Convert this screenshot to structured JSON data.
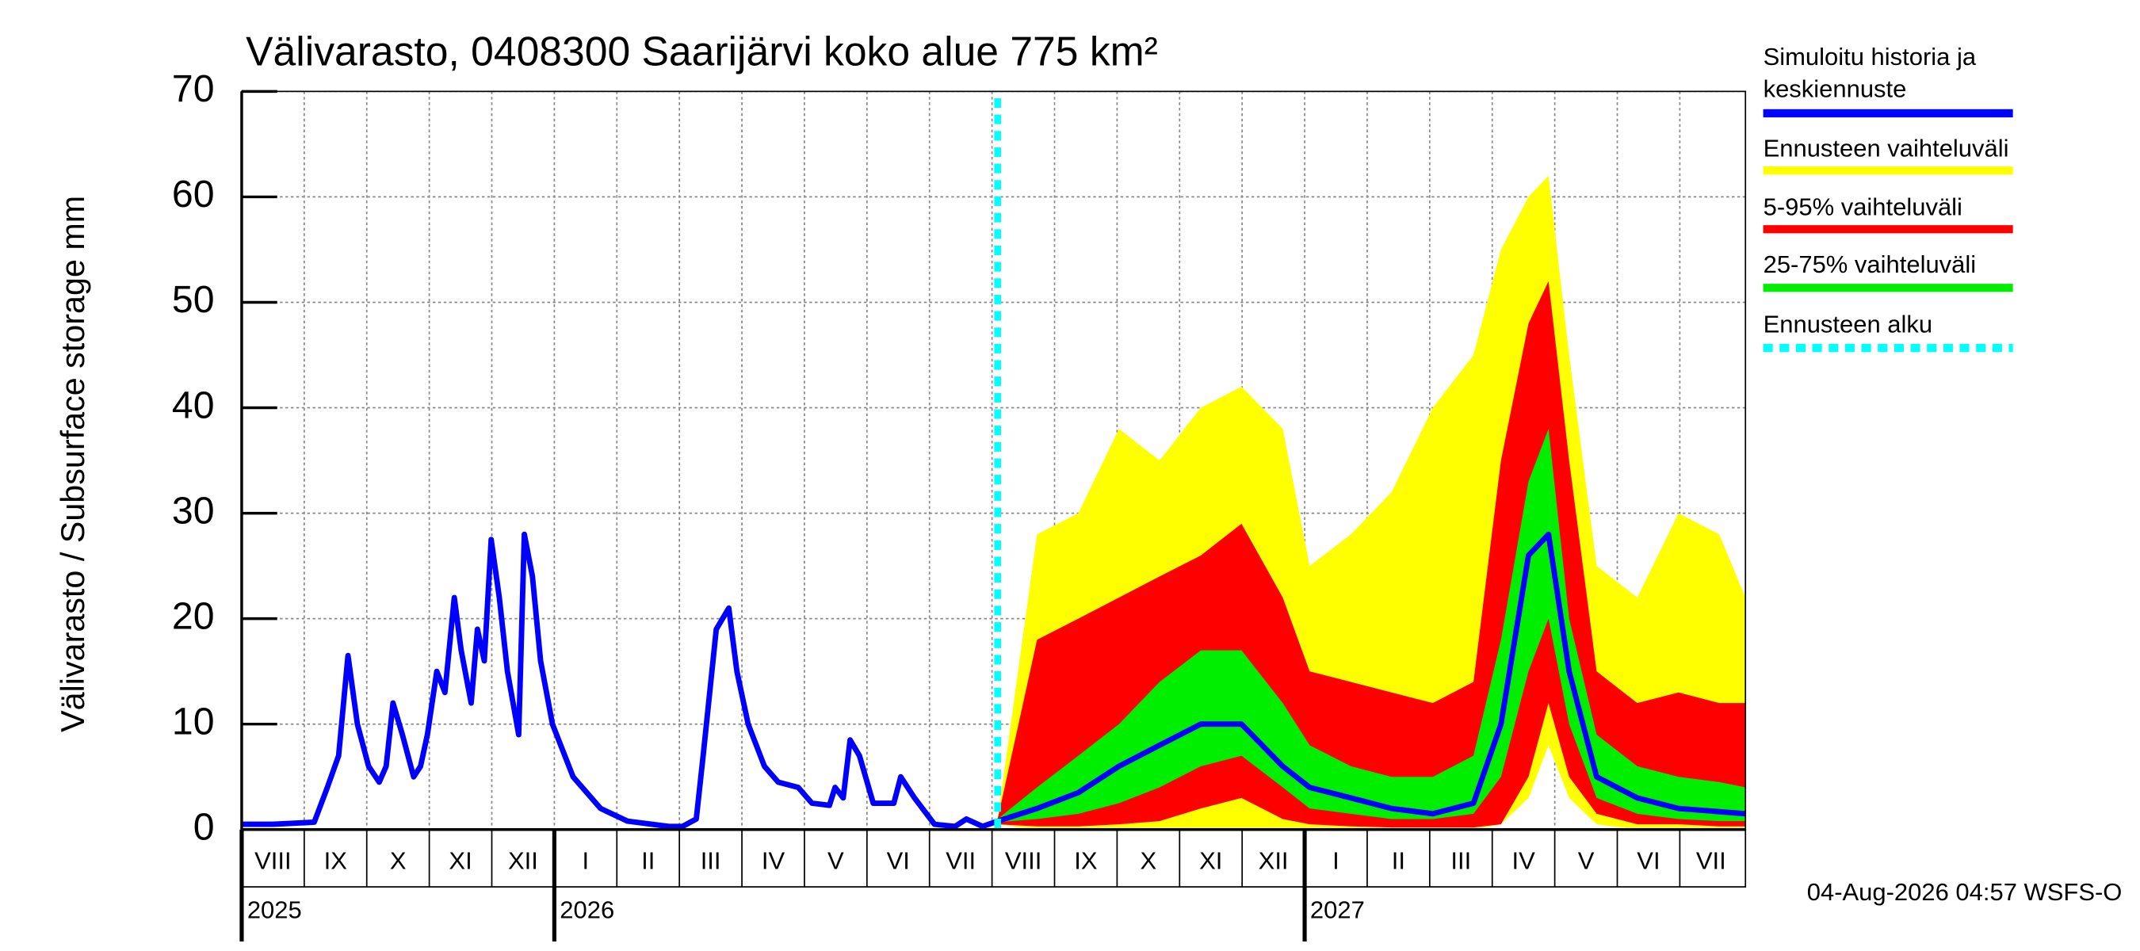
{
  "chart_data": {
    "type": "line",
    "title": "Välivarasto, 0408300 Saarijärvi koko alue 775 km²",
    "y_label": "Välivarasto / Subsurface storage  mm",
    "footer": "04-Aug-2026 04:57 WSFS-O",
    "ylim": [
      0,
      70
    ],
    "yticks": [
      0,
      10,
      20,
      30,
      40,
      50,
      60,
      70
    ],
    "grid": true,
    "xlim": [
      0,
      24.05
    ],
    "xgrid": [
      1,
      2,
      3,
      4,
      5,
      6,
      7,
      8,
      9,
      10,
      11,
      12,
      13,
      14,
      15,
      16,
      17,
      18,
      19,
      20,
      21,
      22,
      23
    ],
    "month_labels": [
      {
        "value": 0.5,
        "label": "VIII"
      },
      {
        "value": 1.5,
        "label": "IX"
      },
      {
        "value": 2.5,
        "label": "X"
      },
      {
        "value": 3.5,
        "label": "XI"
      },
      {
        "value": 4.5,
        "label": "XII"
      },
      {
        "value": 5.5,
        "label": "I"
      },
      {
        "value": 6.5,
        "label": "II"
      },
      {
        "value": 7.5,
        "label": "III"
      },
      {
        "value": 8.5,
        "label": "IV"
      },
      {
        "value": 9.5,
        "label": "V"
      },
      {
        "value": 10.5,
        "label": "VI"
      },
      {
        "value": 11.5,
        "label": "VII"
      },
      {
        "value": 12.5,
        "label": "VIII"
      },
      {
        "value": 13.5,
        "label": "IX"
      },
      {
        "value": 14.5,
        "label": "X"
      },
      {
        "value": 15.5,
        "label": "XI"
      },
      {
        "value": 16.5,
        "label": "XII"
      },
      {
        "value": 17.5,
        "label": "I"
      },
      {
        "value": 18.5,
        "label": "II"
      },
      {
        "value": 19.5,
        "label": "III"
      },
      {
        "value": 20.5,
        "label": "IV"
      },
      {
        "value": 21.5,
        "label": "V"
      },
      {
        "value": 22.5,
        "label": "VI"
      },
      {
        "value": 23.5,
        "label": "VII"
      }
    ],
    "year_labels": [
      {
        "value": 0,
        "label": "2025"
      },
      {
        "value": 5,
        "label": "2026"
      },
      {
        "value": 17,
        "label": "2027"
      }
    ],
    "forecast_x": [
      12.09,
      12.72,
      13.38,
      14.03,
      14.68,
      15.34,
      15.99,
      16.65,
      17.08,
      17.74,
      18.39,
      19.05,
      19.7,
      20.14,
      20.58,
      20.9,
      21.23,
      21.67,
      22.32,
      22.98,
      23.63,
      24.05
    ],
    "series": [
      {
        "name": "Simuloitu historia ja\nkeskiennuste",
        "color": "#0000ff",
        "x": [
          0,
          0.5,
          1.16,
          1.37,
          1.55,
          1.7,
          1.85,
          2.03,
          2.2,
          2.31,
          2.42,
          2.57,
          2.75,
          2.86,
          2.97,
          3.12,
          3.25,
          3.4,
          3.51,
          3.67,
          3.77,
          3.88,
          3.99,
          4.12,
          4.25,
          4.43,
          4.52,
          4.65,
          4.78,
          4.97,
          5.3,
          5.74,
          6.17,
          6.83,
          7.05,
          7.27,
          7.38,
          7.59,
          7.79,
          7.92,
          8.1,
          8.36,
          8.58,
          8.9,
          9.12,
          9.4,
          9.49,
          9.62,
          9.73,
          9.88,
          10.1,
          10.43,
          10.54,
          10.76,
          11.08,
          11.41,
          11.59,
          11.85,
          12.09,
          12.72,
          13.38,
          14.03,
          14.68,
          15.34,
          15.99,
          16.65,
          17.08,
          17.74,
          18.39,
          19.05,
          19.7,
          20.14,
          20.58,
          20.9,
          21.23,
          21.67,
          22.32,
          22.98,
          23.63,
          24.05
        ],
        "values": [
          0.5,
          0.5,
          0.7,
          4,
          7,
          16.5,
          10,
          6,
          4.5,
          6,
          12,
          9,
          5,
          6,
          9,
          15,
          13,
          22,
          17,
          12,
          19,
          16,
          27.5,
          22,
          15,
          9,
          28,
          24,
          16,
          10,
          5,
          2,
          0.8,
          0.3,
          0.3,
          1,
          7,
          19,
          21,
          15,
          10,
          6,
          4.5,
          4,
          2.5,
          2.3,
          4,
          3,
          8.5,
          7,
          2.5,
          2.5,
          5,
          3,
          0.5,
          0.3,
          1,
          0.3,
          0.8,
          2,
          3.5,
          6,
          8,
          10,
          10,
          6,
          4,
          3,
          2,
          1.5,
          2.5,
          10,
          26,
          28,
          15,
          5,
          3,
          2,
          1.7,
          1.5
        ]
      },
      {
        "name": "Ennusteen vaihteluväli",
        "color": "#ffff00",
        "high": [
          1,
          28,
          30,
          38,
          35,
          40,
          42,
          38,
          25,
          28,
          32,
          40,
          45,
          55,
          60,
          62,
          45,
          25,
          22,
          30,
          28,
          22
        ],
        "low": [
          0.5,
          0,
          0,
          0,
          0,
          0,
          0,
          0,
          0,
          0,
          0,
          0,
          0,
          0.5,
          3,
          8,
          3,
          0.5,
          0,
          0,
          0,
          0
        ]
      },
      {
        "name": "5-95% vaihteluväli",
        "color": "#ff0000",
        "high": [
          1,
          18,
          20,
          22,
          24,
          26,
          29,
          22,
          15,
          14,
          13,
          12,
          14,
          35,
          48,
          52,
          35,
          15,
          12,
          13,
          12,
          12
        ],
        "low": [
          0.5,
          0.3,
          0.3,
          0.5,
          0.8,
          2,
          3,
          1,
          0.5,
          0.3,
          0.2,
          0.2,
          0.2,
          0.5,
          5,
          12,
          5,
          1.5,
          0.5,
          0.5,
          0.3,
          0.3
        ]
      },
      {
        "name": "25-75% vaihteluväli",
        "color": "#00ee00",
        "high": [
          1,
          4,
          7,
          10,
          14,
          17,
          17,
          12,
          8,
          6,
          5,
          5,
          7,
          18,
          33,
          38,
          20,
          9,
          6,
          5,
          4.5,
          4
        ],
        "low": [
          0.7,
          1,
          1.5,
          2.5,
          4,
          6,
          7,
          4,
          2,
          1.5,
          1,
          1,
          1.5,
          5,
          15,
          20,
          10,
          3,
          1.5,
          1,
          0.8,
          0.8
        ]
      }
    ],
    "forecast_start": {
      "name": "Ennusteen alku",
      "color": "#00ffff",
      "value": 12.09
    }
  }
}
